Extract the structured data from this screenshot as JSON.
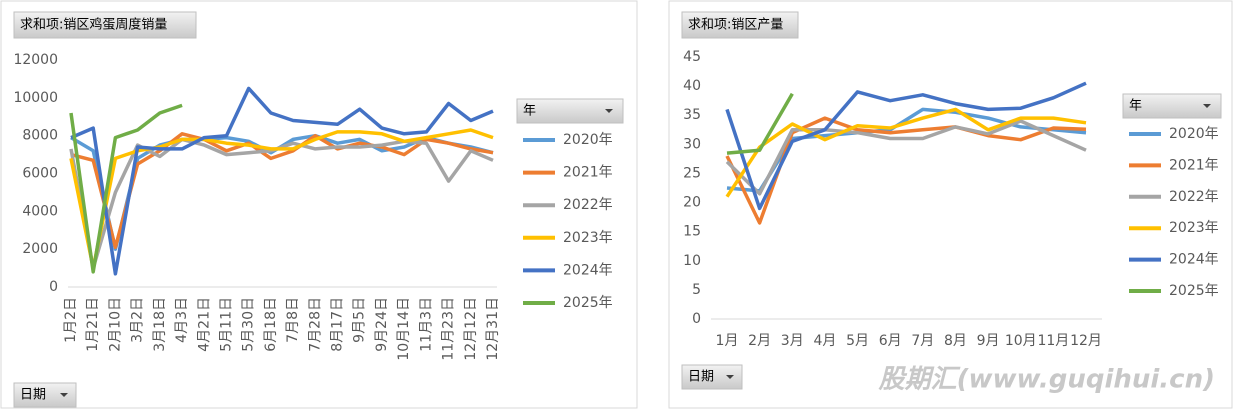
{
  "chart_data": [
    {
      "type": "line",
      "title": "求和项:销区鸡蛋周度销量",
      "legend_title": "年",
      "filter_label": "日期",
      "categories": [
        "1月2日",
        "1月21日",
        "2月10日",
        "3月2日",
        "3月18日",
        "4月3日",
        "4月21日",
        "5月11日",
        "5月30日",
        "6月18日",
        "7月8日",
        "7月28日",
        "8月17日",
        "9月5日",
        "9月24日",
        "10月14日",
        "11月3日",
        "11月23日",
        "12月12日",
        "12月31日"
      ],
      "ylim": [
        0,
        12000
      ],
      "yticks": [
        0,
        2000,
        4000,
        6000,
        8000,
        10000,
        12000
      ],
      "grid": false,
      "legend": "right",
      "series": [
        {
          "name": "2020年",
          "color": "#5b9bd5",
          "values": [
            7900,
            7200,
            2000,
            6800,
            7500,
            7800,
            7800,
            7900,
            7700,
            7100,
            7800,
            8000,
            7600,
            7800,
            7200,
            7400,
            7900,
            7600,
            7400,
            7100
          ]
        },
        {
          "name": "2021年",
          "color": "#ed7d31",
          "values": [
            7000,
            6700,
            2100,
            6500,
            7200,
            8100,
            7800,
            7200,
            7600,
            6800,
            7200,
            8000,
            7300,
            7600,
            7400,
            7000,
            7800,
            7600,
            7300,
            7100
          ]
        },
        {
          "name": "2022年",
          "color": "#a5a5a5",
          "values": [
            7300,
            1000,
            5000,
            7500,
            6900,
            7800,
            7500,
            7000,
            7100,
            7200,
            7600,
            7300,
            7400,
            7400,
            7500,
            7700,
            7600,
            5600,
            7200,
            6700
          ]
        },
        {
          "name": "2023年",
          "color": "#ffc000",
          "values": [
            6800,
            1000,
            6800,
            7200,
            7400,
            7800,
            7800,
            7600,
            7500,
            7300,
            7300,
            7800,
            8200,
            8200,
            8100,
            7700,
            7900,
            8100,
            8300,
            7900
          ]
        },
        {
          "name": "2024年",
          "color": "#4472c4",
          "values": [
            7900,
            8400,
            700,
            7400,
            7300,
            7300,
            7900,
            8000,
            10500,
            9200,
            8800,
            8700,
            8600,
            9400,
            8400,
            8100,
            8200,
            9700,
            8800,
            9300
          ]
        },
        {
          "name": "2025年",
          "color": "#70ad47",
          "values": [
            9200,
            800,
            7900,
            8300,
            9200,
            9600,
            null,
            null,
            null,
            null,
            null,
            null,
            null,
            null,
            null,
            null,
            null,
            null,
            null,
            null
          ]
        }
      ]
    },
    {
      "type": "line",
      "title": "求和项:销区产量",
      "legend_title": "年",
      "filter_label": "日期",
      "categories": [
        "1月",
        "2月",
        "3月",
        "4月",
        "5月",
        "6月",
        "7月",
        "8月",
        "9月",
        "10月",
        "11月",
        "12月"
      ],
      "ylim": [
        0,
        45
      ],
      "yticks": [
        0,
        5,
        10,
        15,
        20,
        25,
        30,
        35,
        40,
        45
      ],
      "grid": false,
      "legend": "right",
      "series": [
        {
          "name": "2020年",
          "color": "#5b9bd5",
          "values": [
            22.5,
            22,
            31,
            31.5,
            32,
            32.5,
            36,
            35.5,
            34.5,
            33,
            32.5,
            32
          ]
        },
        {
          "name": "2021年",
          "color": "#ed7d31",
          "values": [
            28,
            16.5,
            32,
            34.5,
            32.5,
            32,
            32.5,
            33,
            31.5,
            30.8,
            32.8,
            32.6
          ]
        },
        {
          "name": "2022年",
          "color": "#a5a5a5",
          "values": [
            27,
            21.5,
            32.5,
            32.5,
            32,
            31,
            31,
            33,
            31.8,
            34,
            31.5,
            29
          ]
        },
        {
          "name": "2023年",
          "color": "#ffc000",
          "values": [
            21,
            29.5,
            33.5,
            30.8,
            33.2,
            32.8,
            34.5,
            36,
            32.5,
            34.5,
            34.5,
            33.7
          ]
        },
        {
          "name": "2024年",
          "color": "#4472c4",
          "values": [
            36,
            19,
            30.5,
            32.5,
            39,
            37.5,
            38.5,
            37,
            36,
            36.2,
            38,
            40.5
          ]
        },
        {
          "name": "2025年",
          "color": "#70ad47",
          "values": [
            28.5,
            29,
            38.7,
            null,
            null,
            null,
            null,
            null,
            null,
            null,
            null,
            null
          ]
        }
      ]
    }
  ],
  "watermark": "股期汇(www.guqihui.cn)"
}
